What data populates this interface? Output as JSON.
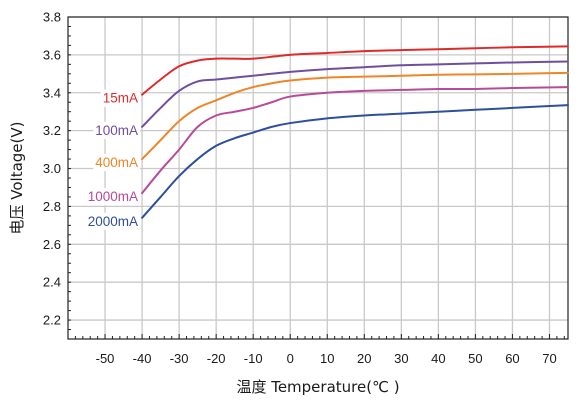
{
  "chart_data": {
    "type": "line",
    "title": "",
    "xlabel": "温度 Temperature(℃ )",
    "ylabel": "电压 Voltage(V)",
    "xlim": [
      -60,
      75
    ],
    "ylim": [
      2.1,
      3.8
    ],
    "x_ticks": [
      -50,
      -40,
      -30,
      -20,
      -10,
      0,
      10,
      20,
      30,
      40,
      50,
      60,
      70
    ],
    "x_tick_labels": [
      "-50",
      "-40",
      "-30",
      "-20",
      "-10",
      "0",
      "10",
      "20",
      "30",
      "40",
      "50",
      "60",
      "70"
    ],
    "y_ticks": [
      2.2,
      2.4,
      2.6,
      2.8,
      3.0,
      3.2,
      3.4,
      3.6,
      3.8
    ],
    "y_tick_labels": [
      "2.2",
      "2.4",
      "2.6",
      "2.8",
      "3.0",
      "3.2",
      "3.4",
      "3.6",
      "3.8"
    ],
    "grid": true,
    "legend": "labels beside curve starts",
    "series": [
      {
        "name": "15mA",
        "color": "#e02a2a",
        "points": [
          [
            -40,
            3.39
          ],
          [
            -35,
            3.47
          ],
          [
            -30,
            3.54
          ],
          [
            -25,
            3.57
          ],
          [
            -20,
            3.58
          ],
          [
            -15,
            3.58
          ],
          [
            -10,
            3.58
          ],
          [
            0,
            3.6
          ],
          [
            10,
            3.61
          ],
          [
            20,
            3.62
          ],
          [
            30,
            3.625
          ],
          [
            40,
            3.63
          ],
          [
            50,
            3.635
          ],
          [
            60,
            3.64
          ],
          [
            75,
            3.645
          ]
        ]
      },
      {
        "name": "100mA",
        "color": "#6e4f9f",
        "points": [
          [
            -40,
            3.22
          ],
          [
            -35,
            3.32
          ],
          [
            -30,
            3.41
          ],
          [
            -25,
            3.46
          ],
          [
            -20,
            3.47
          ],
          [
            -15,
            3.48
          ],
          [
            -10,
            3.49
          ],
          [
            0,
            3.51
          ],
          [
            10,
            3.525
          ],
          [
            20,
            3.535
          ],
          [
            30,
            3.545
          ],
          [
            40,
            3.55
          ],
          [
            50,
            3.555
          ],
          [
            60,
            3.56
          ],
          [
            75,
            3.565
          ]
        ]
      },
      {
        "name": "400mA",
        "color": "#ee8628",
        "points": [
          [
            -40,
            3.05
          ],
          [
            -35,
            3.15
          ],
          [
            -30,
            3.25
          ],
          [
            -25,
            3.32
          ],
          [
            -20,
            3.36
          ],
          [
            -15,
            3.4
          ],
          [
            -10,
            3.43
          ],
          [
            -5,
            3.45
          ],
          [
            0,
            3.465
          ],
          [
            10,
            3.48
          ],
          [
            20,
            3.485
          ],
          [
            30,
            3.49
          ],
          [
            40,
            3.495
          ],
          [
            50,
            3.497
          ],
          [
            60,
            3.5
          ],
          [
            75,
            3.505
          ]
        ]
      },
      {
        "name": "1000mA",
        "color": "#b84a98",
        "points": [
          [
            -40,
            2.87
          ],
          [
            -35,
            2.99
          ],
          [
            -30,
            3.1
          ],
          [
            -25,
            3.22
          ],
          [
            -20,
            3.28
          ],
          [
            -15,
            3.3
          ],
          [
            -10,
            3.32
          ],
          [
            -5,
            3.35
          ],
          [
            0,
            3.38
          ],
          [
            10,
            3.4
          ],
          [
            20,
            3.41
          ],
          [
            30,
            3.415
          ],
          [
            40,
            3.42
          ],
          [
            50,
            3.42
          ],
          [
            60,
            3.425
          ],
          [
            75,
            3.43
          ]
        ]
      },
      {
        "name": "2000mA",
        "color": "#2d4f9e",
        "points": [
          [
            -40,
            2.74
          ],
          [
            -35,
            2.85
          ],
          [
            -30,
            2.96
          ],
          [
            -25,
            3.05
          ],
          [
            -20,
            3.12
          ],
          [
            -15,
            3.16
          ],
          [
            -10,
            3.19
          ],
          [
            -5,
            3.22
          ],
          [
            0,
            3.24
          ],
          [
            10,
            3.265
          ],
          [
            20,
            3.28
          ],
          [
            30,
            3.29
          ],
          [
            40,
            3.3
          ],
          [
            50,
            3.31
          ],
          [
            60,
            3.32
          ],
          [
            75,
            3.335
          ]
        ]
      }
    ]
  }
}
